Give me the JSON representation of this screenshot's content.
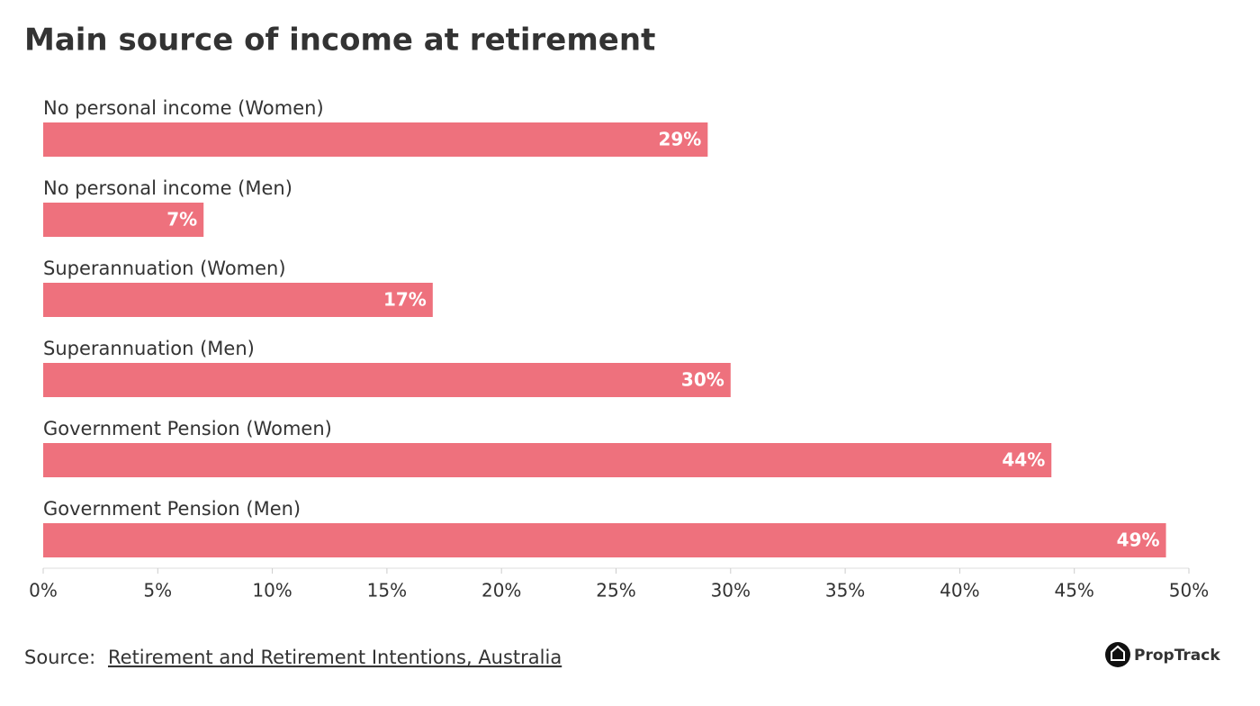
{
  "chart_data": {
    "type": "bar",
    "orientation": "horizontal",
    "title": "Main source of income at retirement",
    "categories": [
      "No personal income (Women)",
      "No personal income (Men)",
      "Superannuation (Women)",
      "Superannuation (Men)",
      "Government Pension (Women)",
      "Government Pension (Men)"
    ],
    "values": [
      29,
      7,
      17,
      30,
      44,
      49
    ],
    "value_labels": [
      "29%",
      "7%",
      "17%",
      "30%",
      "44%",
      "49%"
    ],
    "color": "#ee717d",
    "xlim": [
      0,
      50
    ],
    "xticks": [
      {
        "value": 0,
        "label": "0%"
      },
      {
        "value": 5,
        "label": "5%"
      },
      {
        "value": 10,
        "label": "10%"
      },
      {
        "value": 15,
        "label": "15%"
      },
      {
        "value": 20,
        "label": "20%"
      },
      {
        "value": 25,
        "label": "25%"
      },
      {
        "value": 30,
        "label": "30%"
      },
      {
        "value": 35,
        "label": "35%"
      },
      {
        "value": 40,
        "label": "40%"
      },
      {
        "value": 45,
        "label": "45%"
      },
      {
        "value": 50,
        "label": "50%"
      }
    ],
    "source_label": "Source:",
    "source_link": "Retirement and Retirement Intentions, Australia",
    "brand": "PropTrack"
  }
}
